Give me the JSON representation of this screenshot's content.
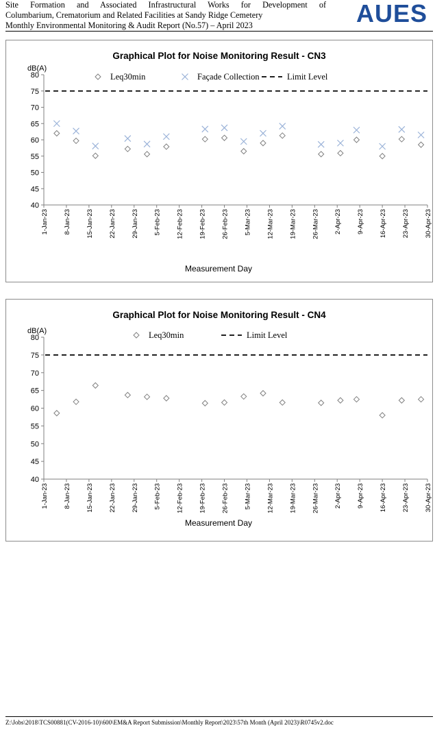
{
  "header": {
    "line1": "Site Formation and Associated Infrastructural Works for Development of",
    "line2": "Columbarium, Crematorium and Related Facilities at Sandy Ridge Cemetery",
    "line3": "Monthly Environmental Monitoring & Audit Report (No.57) – April 2023",
    "logo_text": "AUES",
    "logo_color": "#1f4e9a"
  },
  "footer": {
    "path": "Z:\\Jobs\\2018\\TCS00881(CV-2016-10)\\600\\EM&A Report Submission\\Monthly Report\\2023\\57th Month (April 2023)\\R0745v2.doc"
  },
  "chart_data": [
    {
      "type": "scatter",
      "title": "Graphical Plot for Noise Monitoring Result - CN3",
      "ylabel": "dB(A)",
      "xlabel": "Measurement Day",
      "ylim": [
        40,
        80
      ],
      "yticks": [
        40,
        45,
        50,
        55,
        60,
        65,
        70,
        75,
        80
      ],
      "xlim": [
        "1-Jan-23",
        "30-Apr-23"
      ],
      "xticks": [
        "1-Jan-23",
        "8-Jan-23",
        "15-Jan-23",
        "22-Jan-23",
        "29-Jan-23",
        "5-Feb-23",
        "12-Feb-23",
        "19-Feb-23",
        "26-Feb-23",
        "5-Mar-23",
        "12-Mar-23",
        "19-Mar-23",
        "26-Mar-23",
        "2-Apr-23",
        "9-Apr-23",
        "16-Apr-23",
        "23-Apr-23",
        "30-Apr-23"
      ],
      "grid": false,
      "legend_placement": "top",
      "limit_level": 75,
      "series": [
        {
          "name": "Leq30min",
          "marker": "diamond",
          "color": "#808080",
          "points": [
            {
              "x": "5-Jan-23",
              "y": 62.0
            },
            {
              "x": "11-Jan-23",
              "y": 59.7
            },
            {
              "x": "17-Jan-23",
              "y": 55.1
            },
            {
              "x": "27-Jan-23",
              "y": 57.2
            },
            {
              "x": "2-Feb-23",
              "y": 55.6
            },
            {
              "x": "8-Feb-23",
              "y": 57.9
            },
            {
              "x": "20-Feb-23",
              "y": 60.2
            },
            {
              "x": "26-Feb-23",
              "y": 60.6
            },
            {
              "x": "4-Mar-23",
              "y": 56.5
            },
            {
              "x": "10-Mar-23",
              "y": 59.0
            },
            {
              "x": "16-Mar-23",
              "y": 61.3
            },
            {
              "x": "28-Mar-23",
              "y": 55.6
            },
            {
              "x": "3-Apr-23",
              "y": 55.9
            },
            {
              "x": "8-Apr-23",
              "y": 60.0
            },
            {
              "x": "16-Apr-23",
              "y": 55.0
            },
            {
              "x": "22-Apr-23",
              "y": 60.2
            },
            {
              "x": "28-Apr-23",
              "y": 58.5
            }
          ]
        },
        {
          "name": "Façade Collection",
          "marker": "x",
          "color": "#9ab2d8",
          "points": [
            {
              "x": "5-Jan-23",
              "y": 65.0
            },
            {
              "x": "11-Jan-23",
              "y": 62.7
            },
            {
              "x": "17-Jan-23",
              "y": 58.1
            },
            {
              "x": "27-Jan-23",
              "y": 60.4
            },
            {
              "x": "2-Feb-23",
              "y": 58.7
            },
            {
              "x": "8-Feb-23",
              "y": 61.0
            },
            {
              "x": "20-Feb-23",
              "y": 63.3
            },
            {
              "x": "26-Feb-23",
              "y": 63.7
            },
            {
              "x": "4-Mar-23",
              "y": 59.5
            },
            {
              "x": "10-Mar-23",
              "y": 62.0
            },
            {
              "x": "16-Mar-23",
              "y": 64.2
            },
            {
              "x": "28-Mar-23",
              "y": 58.6
            },
            {
              "x": "3-Apr-23",
              "y": 59.0
            },
            {
              "x": "8-Apr-23",
              "y": 63.0
            },
            {
              "x": "16-Apr-23",
              "y": 58.0
            },
            {
              "x": "22-Apr-23",
              "y": 63.2
            },
            {
              "x": "28-Apr-23",
              "y": 61.5
            }
          ]
        },
        {
          "name": "Limit Level",
          "marker": "dashed-line",
          "color": "#000000"
        }
      ]
    },
    {
      "type": "scatter",
      "title": "Graphical Plot for Noise Monitoring Result - CN4",
      "ylabel": "dB(A)",
      "xlabel": "Measurement Day",
      "ylim": [
        40,
        80
      ],
      "yticks": [
        40,
        45,
        50,
        55,
        60,
        65,
        70,
        75,
        80
      ],
      "xlim": [
        "1-Jan-23",
        "30-Apr-23"
      ],
      "xticks": [
        "1-Jan-23",
        "8-Jan-23",
        "15-Jan-23",
        "22-Jan-23",
        "29-Jan-23",
        "5-Feb-23",
        "12-Feb-23",
        "19-Feb-23",
        "26-Feb-23",
        "5-Mar-23",
        "12-Mar-23",
        "19-Mar-23",
        "26-Mar-23",
        "2-Apr-23",
        "9-Apr-23",
        "16-Apr-23",
        "23-Apr-23",
        "30-Apr-23"
      ],
      "grid": false,
      "legend_placement": "top",
      "limit_level": 75,
      "series": [
        {
          "name": "Leq30min",
          "marker": "diamond",
          "color": "#808080",
          "points": [
            {
              "x": "5-Jan-23",
              "y": 58.6
            },
            {
              "x": "11-Jan-23",
              "y": 61.8
            },
            {
              "x": "17-Jan-23",
              "y": 66.4
            },
            {
              "x": "27-Jan-23",
              "y": 63.7
            },
            {
              "x": "2-Feb-23",
              "y": 63.2
            },
            {
              "x": "8-Feb-23",
              "y": 62.8
            },
            {
              "x": "20-Feb-23",
              "y": 61.4
            },
            {
              "x": "26-Feb-23",
              "y": 61.6
            },
            {
              "x": "4-Mar-23",
              "y": 63.3
            },
            {
              "x": "10-Mar-23",
              "y": 64.2
            },
            {
              "x": "16-Mar-23",
              "y": 61.6
            },
            {
              "x": "28-Mar-23",
              "y": 61.5
            },
            {
              "x": "3-Apr-23",
              "y": 62.2
            },
            {
              "x": "8-Apr-23",
              "y": 62.5
            },
            {
              "x": "16-Apr-23",
              "y": 58.0
            },
            {
              "x": "22-Apr-23",
              "y": 62.2
            },
            {
              "x": "28-Apr-23",
              "y": 62.5
            }
          ]
        },
        {
          "name": "Limit Level",
          "marker": "dashed-line",
          "color": "#000000"
        }
      ]
    }
  ]
}
